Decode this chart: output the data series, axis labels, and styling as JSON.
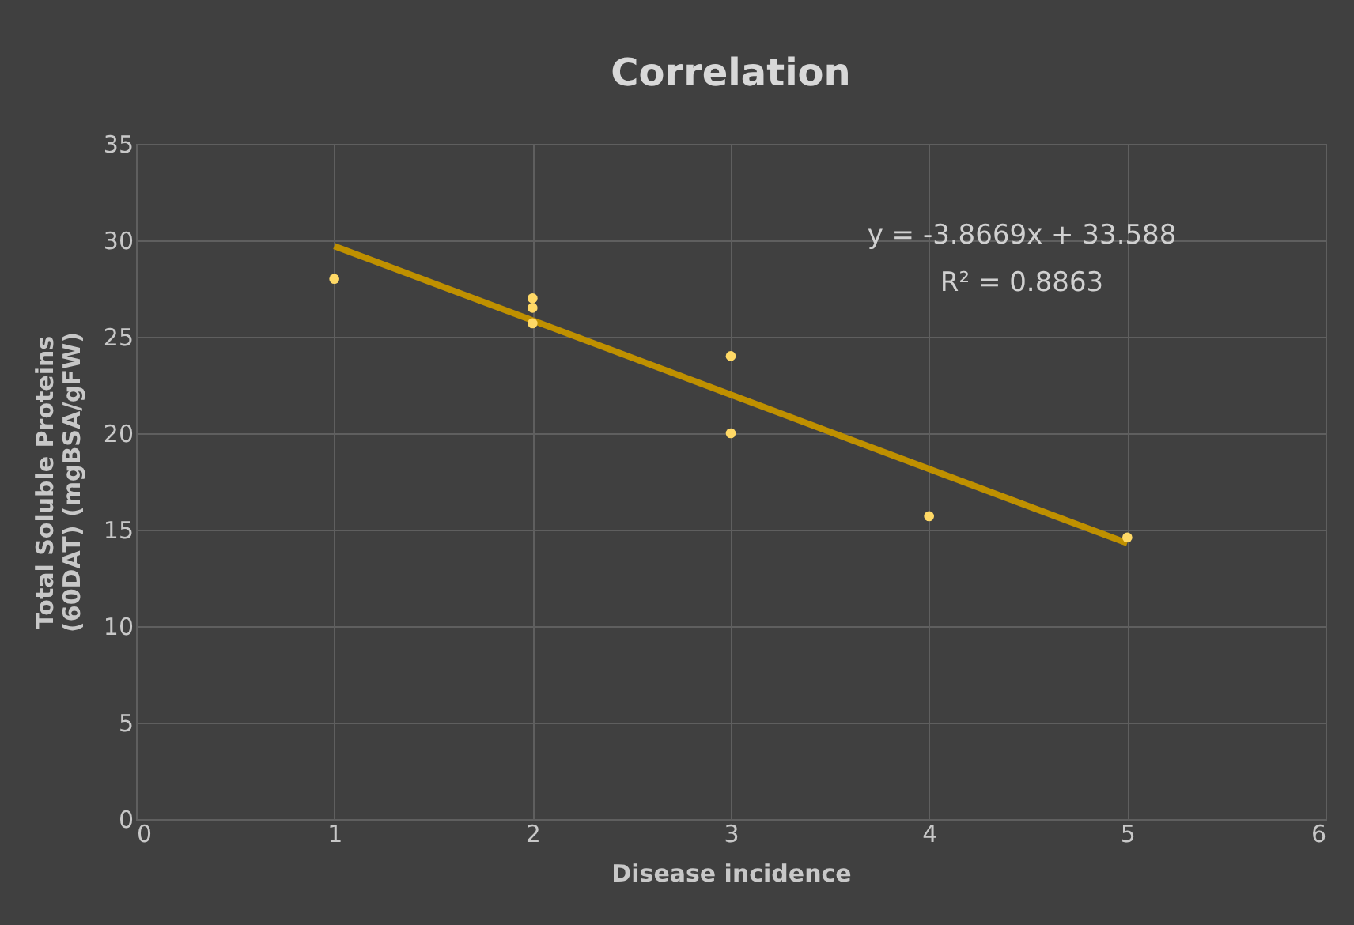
{
  "chart_data": {
    "type": "scatter",
    "title": "Correlation",
    "xlabel": "Disease incidence",
    "ylabel": "Total Soluble Proteins (60DAT) (mgBSA/gFW)",
    "series": [
      {
        "color": "#ffd966",
        "marker": "circle",
        "x": [
          1,
          2,
          2,
          2,
          3,
          3,
          4,
          5
        ],
        "values": [
          28,
          27,
          26.5,
          25.7,
          24,
          20,
          15.7,
          14.6
        ]
      },
      {
        "type": "line",
        "color": "#bf9000",
        "x": [
          1,
          5
        ],
        "values": [
          29.7,
          14.3
        ],
        "marker": "none"
      }
    ],
    "annotations": [
      "y = -3.8669x + 33.588",
      "R² = 0.8863"
    ],
    "xlim": [
      0,
      6
    ],
    "xticks": [
      0,
      1,
      2,
      3,
      4,
      5,
      6
    ],
    "ylim": [
      0,
      35
    ],
    "yticks": [
      0,
      5,
      10,
      15,
      20,
      25,
      30,
      35
    ],
    "grid": true
  }
}
